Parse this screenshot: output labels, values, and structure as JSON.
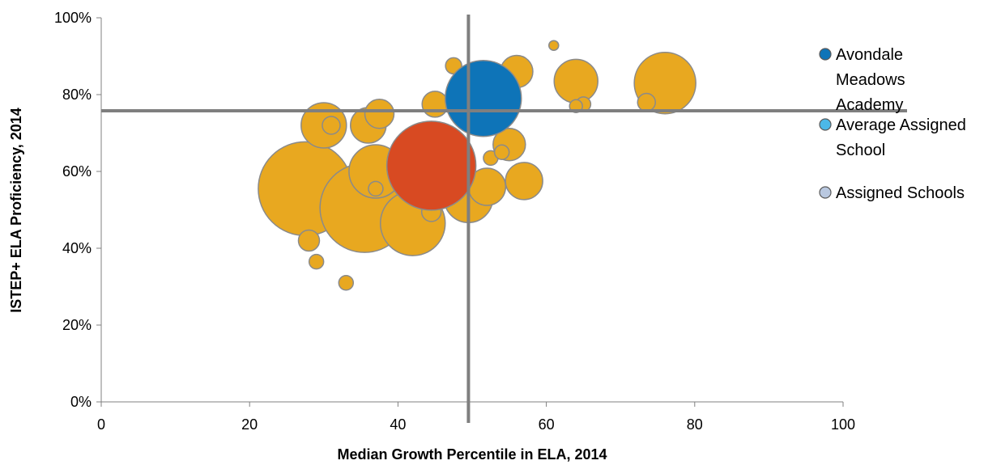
{
  "chart_data": {
    "type": "scatter",
    "subtype": "bubble",
    "xlabel": "Median Growth Percentile in ELA, 2014",
    "ylabel": "ISTEP+ ELA Proficiency, 2014",
    "xlim": [
      0,
      100
    ],
    "ylim": [
      0,
      100
    ],
    "x_ticks": [
      0,
      20,
      40,
      60,
      80,
      100
    ],
    "x_tick_labels": [
      "0",
      "20",
      "40",
      "60",
      "80",
      "100"
    ],
    "y_ticks": [
      0,
      20,
      40,
      60,
      80,
      100
    ],
    "y_tick_labels": [
      "0%",
      "20%",
      "40%",
      "60%",
      "80%",
      "100%"
    ],
    "grid": false,
    "legend_position": "right",
    "reference_lines": {
      "x": 49.5,
      "y": 75.8
    },
    "series": [
      {
        "name": "Assigned Schools",
        "legend_label": "Assigned Schools",
        "legend_color": "#b9c8e0",
        "color": "#e8a820",
        "points": [
          {
            "x": 27.5,
            "y": 55.5,
            "r": 58
          },
          {
            "x": 35.5,
            "y": 50.5,
            "r": 55
          },
          {
            "x": 42.0,
            "y": 46.5,
            "r": 40
          },
          {
            "x": 37.0,
            "y": 60.0,
            "r": 33
          },
          {
            "x": 49.5,
            "y": 53.0,
            "r": 30
          },
          {
            "x": 52.0,
            "y": 56.0,
            "r": 23
          },
          {
            "x": 55.0,
            "y": 67.0,
            "r": 20
          },
          {
            "x": 56.0,
            "y": 86.0,
            "r": 20
          },
          {
            "x": 64.0,
            "y": 83.5,
            "r": 27
          },
          {
            "x": 76.0,
            "y": 83.0,
            "r": 38
          },
          {
            "x": 30.0,
            "y": 72.0,
            "r": 28
          },
          {
            "x": 36.0,
            "y": 72.0,
            "r": 22
          },
          {
            "x": 37.5,
            "y": 75.0,
            "r": 18
          },
          {
            "x": 45.0,
            "y": 77.5,
            "r": 16
          },
          {
            "x": 57.0,
            "y": 57.5,
            "r": 23
          },
          {
            "x": 31.0,
            "y": 72.0,
            "r": 11
          },
          {
            "x": 37.0,
            "y": 55.5,
            "r": 9
          },
          {
            "x": 28.0,
            "y": 42.0,
            "r": 13
          },
          {
            "x": 29.0,
            "y": 36.5,
            "r": 9
          },
          {
            "x": 33.0,
            "y": 31.0,
            "r": 9
          },
          {
            "x": 44.5,
            "y": 49.5,
            "r": 12
          },
          {
            "x": 52.5,
            "y": 63.5,
            "r": 9
          },
          {
            "x": 54.0,
            "y": 65.0,
            "r": 9
          },
          {
            "x": 61.0,
            "y": 92.8,
            "r": 6
          },
          {
            "x": 64.0,
            "y": 77.0,
            "r": 8
          },
          {
            "x": 65.0,
            "y": 77.5,
            "r": 9
          },
          {
            "x": 73.5,
            "y": 78.0,
            "r": 11
          },
          {
            "x": 47.5,
            "y": 87.5,
            "r": 10
          }
        ]
      },
      {
        "name": "Average Assigned School",
        "legend_label": "Average Assigned\nSchool",
        "legend_color": "#4bb8e8",
        "color": "#d84a22",
        "points": [
          {
            "x": 44.5,
            "y": 61.5,
            "r": 55
          }
        ]
      },
      {
        "name": "Avondale Meadows Academy",
        "legend_label": "Avondale\nMeadows\nAcademy",
        "legend_color": "#0e74b8",
        "color": "#0e74b8",
        "points": [
          {
            "x": 51.5,
            "y": 79.0,
            "r": 47
          }
        ]
      }
    ]
  }
}
